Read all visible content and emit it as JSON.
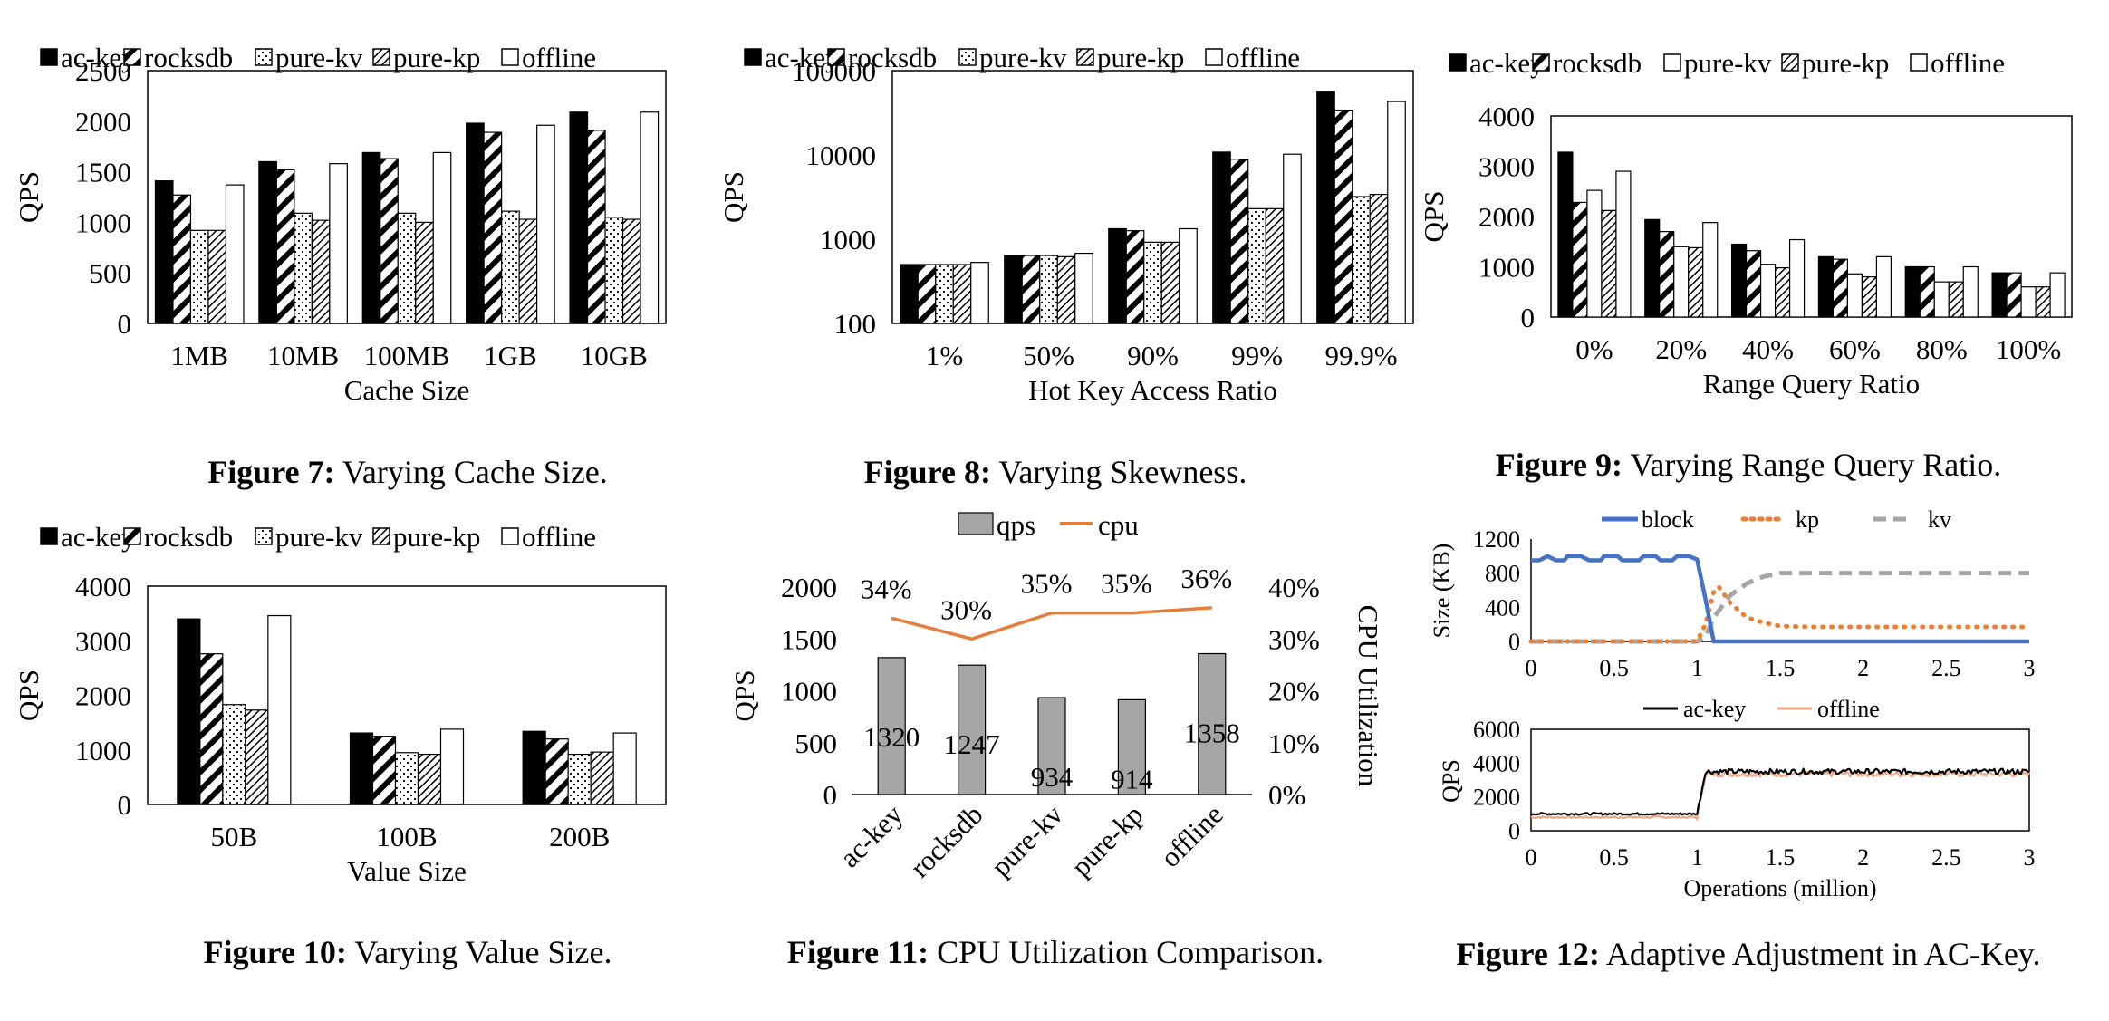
{
  "colors": {
    "ink": "#000000",
    "cpu_line": "#E67E3A",
    "qps_bar": "#A6A6A6",
    "block": "#4472C4",
    "kp": "#ED7D31",
    "kv": "#A5A5A5",
    "offline_line": "#F4A582"
  },
  "captions": [
    {
      "label": "Figure 7:",
      "text": "Varying Cache Size."
    },
    {
      "label": "Figure 8:",
      "text": "Varying Skewness."
    },
    {
      "label": "Figure 9:",
      "text": "Varying Range Query Ratio."
    },
    {
      "label": "Figure 10:",
      "text": "Varying Value Size."
    },
    {
      "label": "Figure 11:",
      "text": "CPU Utilization Comparison."
    },
    {
      "label": "Figure 12:",
      "text": "Adaptive Adjustment in AC-Key."
    }
  ],
  "chart_data": [
    {
      "id": "fig7",
      "type": "bar",
      "categories": [
        "1MB",
        "10MB",
        "100MB",
        "1GB",
        "10GB"
      ],
      "series": [
        {
          "name": "ac-key",
          "pattern": "solid",
          "values": [
            1410,
            1600,
            1690,
            1980,
            2090
          ]
        },
        {
          "name": "rocksdb",
          "pattern": "hatch",
          "values": [
            1270,
            1520,
            1630,
            1890,
            1910
          ]
        },
        {
          "name": "pure-kv",
          "pattern": "dots",
          "values": [
            920,
            1090,
            1090,
            1110,
            1050
          ]
        },
        {
          "name": "pure-kp",
          "pattern": "lhatch",
          "values": [
            920,
            1020,
            1000,
            1030,
            1030
          ]
        },
        {
          "name": "offline",
          "pattern": "white",
          "values": [
            1370,
            1580,
            1690,
            1960,
            2090
          ]
        }
      ],
      "xlabel": "Cache Size",
      "ylabel": "QPS",
      "ylim": [
        0,
        2500
      ],
      "yticks": [
        "0",
        "500",
        "1000",
        "1500",
        "2000",
        "2500"
      ],
      "ytick_values": [
        0,
        500,
        1000,
        1500,
        2000,
        2500
      ],
      "legend_position": "top"
    },
    {
      "id": "fig8",
      "type": "bar",
      "yscale": "log",
      "categories": [
        "1%",
        "50%",
        "90%",
        "99%",
        "99.9%"
      ],
      "series": [
        {
          "name": "ac-key",
          "pattern": "solid",
          "values": [
            500,
            640,
            1330,
            10800,
            57000
          ]
        },
        {
          "name": "rocksdb",
          "pattern": "hatch",
          "values": [
            500,
            640,
            1260,
            8900,
            34000
          ]
        },
        {
          "name": "pure-kv",
          "pattern": "dots",
          "values": [
            500,
            640,
            920,
            2300,
            3200
          ]
        },
        {
          "name": "pure-kp",
          "pattern": "lhatch",
          "values": [
            500,
            620,
            920,
            2300,
            3400
          ]
        },
        {
          "name": "offline",
          "pattern": "white",
          "values": [
            530,
            680,
            1330,
            10200,
            43000
          ]
        }
      ],
      "xlabel": "Hot Key Access Ratio",
      "ylabel": "QPS",
      "ylim": [
        100,
        100000
      ],
      "yticks": [
        "100",
        "1000",
        "10000",
        "100000"
      ],
      "ytick_values": [
        100,
        1000,
        10000,
        100000
      ],
      "legend_position": "top"
    },
    {
      "id": "fig9",
      "type": "bar",
      "categories": [
        "0%",
        "20%",
        "40%",
        "60%",
        "80%",
        "100%"
      ],
      "series": [
        {
          "name": "ac-key",
          "pattern": "solid",
          "values": [
            3280,
            1940,
            1450,
            1200,
            1000,
            880
          ]
        },
        {
          "name": "rocksdb",
          "pattern": "hatch",
          "values": [
            2280,
            1700,
            1320,
            1150,
            1000,
            880
          ]
        },
        {
          "name": "pure-kv",
          "pattern": "white",
          "values": [
            2520,
            1400,
            1050,
            860,
            700,
            600
          ]
        },
        {
          "name": "pure-kp",
          "pattern": "lhatch",
          "values": [
            2120,
            1380,
            980,
            800,
            700,
            600
          ]
        },
        {
          "name": "offline",
          "pattern": "white",
          "values": [
            2900,
            1880,
            1540,
            1200,
            1000,
            880
          ]
        }
      ],
      "xlabel": "Range Query Ratio",
      "ylabel": "QPS",
      "ylim": [
        0,
        4000
      ],
      "yticks": [
        "0",
        "1000",
        "2000",
        "3000",
        "4000"
      ],
      "ytick_values": [
        0,
        1000,
        2000,
        3000,
        4000
      ],
      "legend_position": "top"
    },
    {
      "id": "fig10",
      "type": "bar",
      "categories": [
        "50B",
        "100B",
        "200B"
      ],
      "series": [
        {
          "name": "ac-key",
          "pattern": "solid",
          "values": [
            3400,
            1310,
            1340
          ]
        },
        {
          "name": "rocksdb",
          "pattern": "hatch",
          "values": [
            2760,
            1250,
            1200
          ]
        },
        {
          "name": "pure-kv",
          "pattern": "dots",
          "values": [
            1830,
            950,
            920
          ]
        },
        {
          "name": "pure-kp",
          "pattern": "lhatch",
          "values": [
            1730,
            920,
            960
          ]
        },
        {
          "name": "offline",
          "pattern": "white",
          "values": [
            3460,
            1380,
            1310
          ]
        }
      ],
      "xlabel": "Value Size",
      "ylabel": "QPS",
      "ylim": [
        0,
        4000
      ],
      "yticks": [
        "0",
        "1000",
        "2000",
        "3000",
        "4000"
      ],
      "ytick_values": [
        0,
        1000,
        2000,
        3000,
        4000
      ],
      "legend_position": "top"
    },
    {
      "id": "fig11",
      "type": "bar+line",
      "categories": [
        "ac-key",
        "rocksdb",
        "pure-kv",
        "pure-kp",
        "offline"
      ],
      "series": [
        {
          "name": "qps",
          "values": [
            1320,
            1247,
            934,
            914,
            1358
          ],
          "labels": [
            "1320",
            "1247",
            "934",
            "914",
            "1358"
          ]
        },
        {
          "name": "cpu",
          "values": [
            34,
            30,
            35,
            35,
            36
          ],
          "labels": [
            "34%",
            "30%",
            "35%",
            "35%",
            "36%"
          ],
          "axis": "right"
        }
      ],
      "ylabel": "QPS",
      "ylim": [
        0,
        2000
      ],
      "yticks": [
        "0",
        "500",
        "1000",
        "1500",
        "2000"
      ],
      "ytick_values": [
        0,
        500,
        1000,
        1500,
        2000
      ],
      "y2label": "CPU Utilization",
      "y2lim": [
        0,
        40
      ],
      "y2ticks": [
        "0%",
        "10%",
        "20%",
        "30%",
        "40%"
      ],
      "y2tick_values": [
        0,
        10,
        20,
        30,
        40
      ],
      "legend_position": "top"
    },
    {
      "id": "fig12a",
      "type": "line",
      "series": [
        {
          "name": "block",
          "style": "solid",
          "points": [
            [
              0,
              950
            ],
            [
              0.05,
              950
            ],
            [
              0.1,
              1000
            ],
            [
              0.15,
              950
            ],
            [
              0.2,
              950
            ],
            [
              0.22,
              1000
            ],
            [
              0.3,
              1000
            ],
            [
              0.35,
              950
            ],
            [
              0.42,
              950
            ],
            [
              0.44,
              1000
            ],
            [
              0.52,
              1000
            ],
            [
              0.55,
              950
            ],
            [
              0.65,
              950
            ],
            [
              0.68,
              1000
            ],
            [
              0.75,
              1000
            ],
            [
              0.78,
              950
            ],
            [
              0.85,
              950
            ],
            [
              0.88,
              1000
            ],
            [
              0.95,
              1000
            ],
            [
              1.0,
              960
            ],
            [
              1.05,
              500
            ],
            [
              1.1,
              0
            ],
            [
              3.0,
              0
            ]
          ]
        },
        {
          "name": "kp",
          "style": "dotted",
          "points": [
            [
              0,
              0
            ],
            [
              1.0,
              0
            ],
            [
              1.05,
              200
            ],
            [
              1.1,
              580
            ],
            [
              1.13,
              640
            ],
            [
              1.2,
              450
            ],
            [
              1.3,
              280
            ],
            [
              1.4,
              220
            ],
            [
              1.5,
              180
            ],
            [
              1.7,
              170
            ],
            [
              2.0,
              170
            ],
            [
              2.5,
              170
            ],
            [
              3.0,
              170
            ]
          ]
        },
        {
          "name": "kv",
          "style": "dashed",
          "points": [
            [
              0,
              0
            ],
            [
              1.0,
              0
            ],
            [
              1.05,
              50
            ],
            [
              1.1,
              280
            ],
            [
              1.2,
              540
            ],
            [
              1.3,
              680
            ],
            [
              1.4,
              760
            ],
            [
              1.5,
              800
            ],
            [
              1.7,
              800
            ],
            [
              2.0,
              800
            ],
            [
              2.5,
              800
            ],
            [
              3.0,
              800
            ]
          ]
        }
      ],
      "ylabel": "Size (KB)",
      "xlim": [
        0,
        3
      ],
      "ylim": [
        0,
        1200
      ],
      "xticks": [
        "0",
        "0.5",
        "1",
        "1.5",
        "2",
        "2.5",
        "3"
      ],
      "xtick_values": [
        0,
        0.5,
        1,
        1.5,
        2,
        2.5,
        3
      ],
      "yticks": [
        "0",
        "400",
        "800",
        "1200"
      ],
      "ytick_values": [
        0,
        400,
        800,
        1200
      ],
      "legend_position": "top"
    },
    {
      "id": "fig12b",
      "type": "line",
      "series": [
        {
          "name": "ac-key",
          "level_before": 1000,
          "level_after": 3500,
          "switch_at": 1.0
        },
        {
          "name": "offline",
          "level_before": 800,
          "level_after": 3350,
          "switch_at": 1.0
        }
      ],
      "xlabel": "Operations (million)",
      "ylabel": "QPS",
      "xlim": [
        0,
        3
      ],
      "ylim": [
        0,
        6000
      ],
      "xticks": [
        "0",
        "0.5",
        "1",
        "1.5",
        "2",
        "2.5",
        "3"
      ],
      "xtick_values": [
        0,
        0.5,
        1,
        1.5,
        2,
        2.5,
        3
      ],
      "yticks": [
        "0",
        "2000",
        "4000",
        "6000"
      ],
      "ytick_values": [
        0,
        2000,
        4000,
        6000
      ],
      "legend_position": "top"
    }
  ]
}
